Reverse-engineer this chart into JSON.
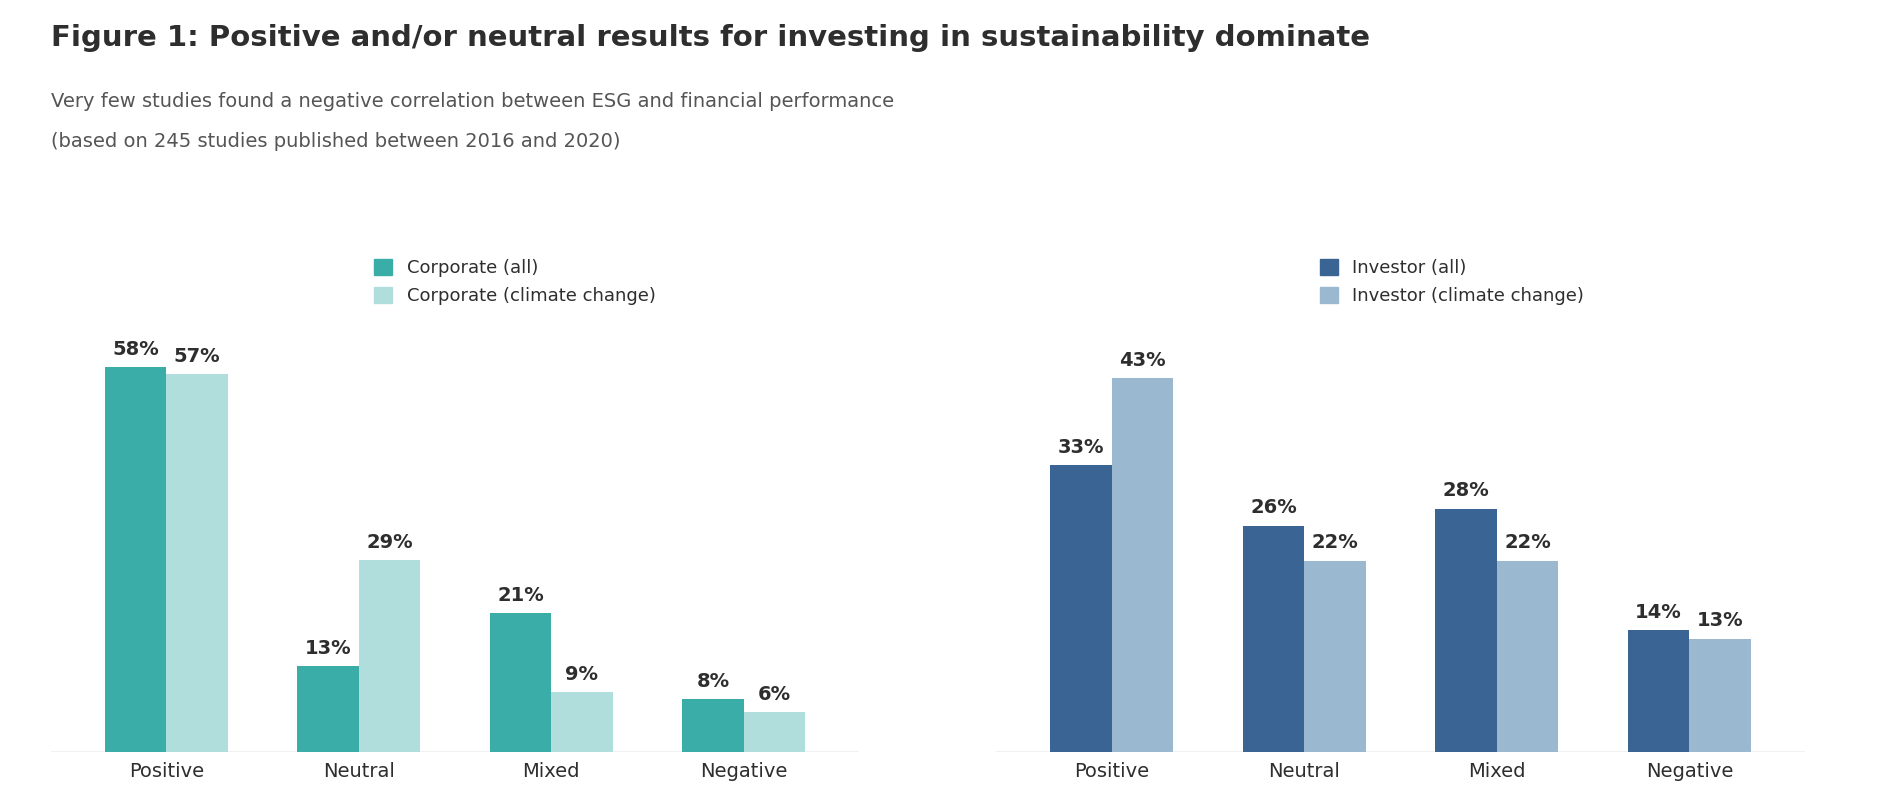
{
  "title": "Figure 1: Positive and/or neutral results for investing in sustainability dominate",
  "subtitle_line1": "Very few studies found a negative correlation between ESG and financial performance",
  "subtitle_line2": "(based on 245 studies published between 2016 and 2020)",
  "categories": [
    "Positive",
    "Neutral",
    "Mixed",
    "Negative"
  ],
  "corporate_all": [
    58,
    13,
    21,
    8
  ],
  "corporate_climate": [
    57,
    29,
    9,
    6
  ],
  "investor_all": [
    33,
    26,
    28,
    14
  ],
  "investor_climate": [
    43,
    22,
    22,
    13
  ],
  "color_corp_all": "#3aada8",
  "color_corp_climate": "#b0dedd",
  "color_inv_all": "#3a6494",
  "color_inv_climate": "#9ab8d0",
  "title_fontsize": 21,
  "subtitle_fontsize": 14,
  "legend_fontsize": 13,
  "value_fontsize": 14,
  "tick_fontsize": 14,
  "bar_width": 0.32,
  "background_color": "#ffffff"
}
